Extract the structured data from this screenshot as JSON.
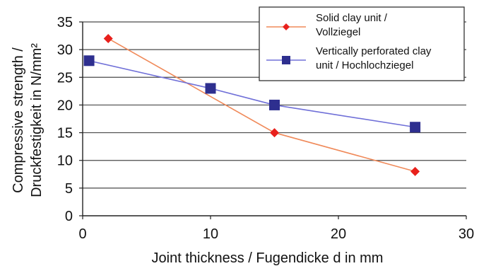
{
  "chart_data": {
    "type": "line",
    "xlabel": "Joint thickness / Fugendicke d in mm",
    "ylabel_lines": [
      "Compressive strength /",
      "Druckfestigkeit in N/mm²"
    ],
    "xlim": [
      0,
      30
    ],
    "ylim": [
      0,
      35
    ],
    "x_ticks": [
      0,
      10,
      20,
      30
    ],
    "y_ticks": [
      0,
      5,
      10,
      15,
      20,
      25,
      30,
      35
    ],
    "grid": "horizontal",
    "legend_position": "top-right",
    "series": [
      {
        "name_lines": [
          "Solid clay unit /",
          "Vollziegel"
        ],
        "color": "#e8201c",
        "line_color": "#f08a5a",
        "marker": "diamond",
        "points": [
          {
            "x": 2,
            "y": 32
          },
          {
            "x": 15,
            "y": 15
          },
          {
            "x": 26,
            "y": 8
          }
        ]
      },
      {
        "name_lines": [
          "Vertically perforated clay",
          "unit / Hochlochziegel"
        ],
        "color": "#2e2f8f",
        "line_color": "#7070d8",
        "marker": "square",
        "points": [
          {
            "x": 0.5,
            "y": 28
          },
          {
            "x": 10,
            "y": 23
          },
          {
            "x": 15,
            "y": 20
          },
          {
            "x": 26,
            "y": 16
          }
        ]
      }
    ]
  }
}
